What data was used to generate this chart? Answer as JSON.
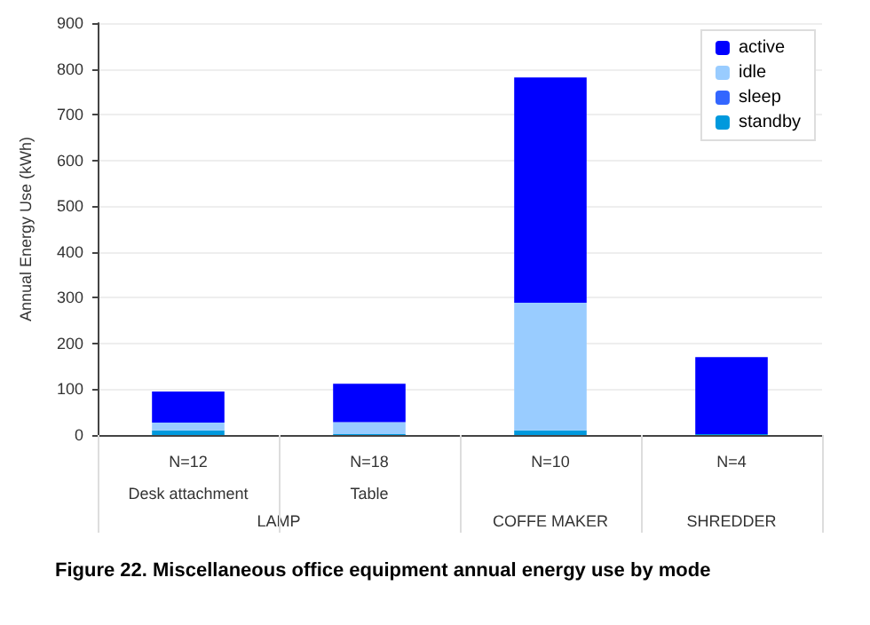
{
  "chart_data": {
    "type": "bar",
    "stacked": true,
    "title": "Figure 22. Miscellaneous office equipment annual energy use by mode",
    "ylabel": "Annual Energy Use (kWh)",
    "categories": [
      "N=12\nDesk attachment",
      "N=18\nTable",
      "N=10",
      "N=4"
    ],
    "annotations": [
      "LAMP",
      "COFFE MAKER",
      "SHREDDER"
    ],
    "series": [
      {
        "name": "standby",
        "color": "#0099dd",
        "values": [
          10,
          2,
          10,
          2
        ]
      },
      {
        "name": "sleep",
        "color": "#3366ff",
        "values": [
          0,
          0,
          0,
          0
        ]
      },
      {
        "name": "idle",
        "color": "#99ccff",
        "values": [
          17,
          26,
          279,
          0
        ]
      },
      {
        "name": "active",
        "color": "#0000ff",
        "values": [
          68,
          84,
          492,
          168
        ]
      }
    ],
    "ylim": [
      0,
      900
    ],
    "yticks": [
      0,
      100,
      200,
      300,
      400,
      500,
      600,
      700,
      800,
      900
    ],
    "grid": "y",
    "legend": "top right"
  }
}
